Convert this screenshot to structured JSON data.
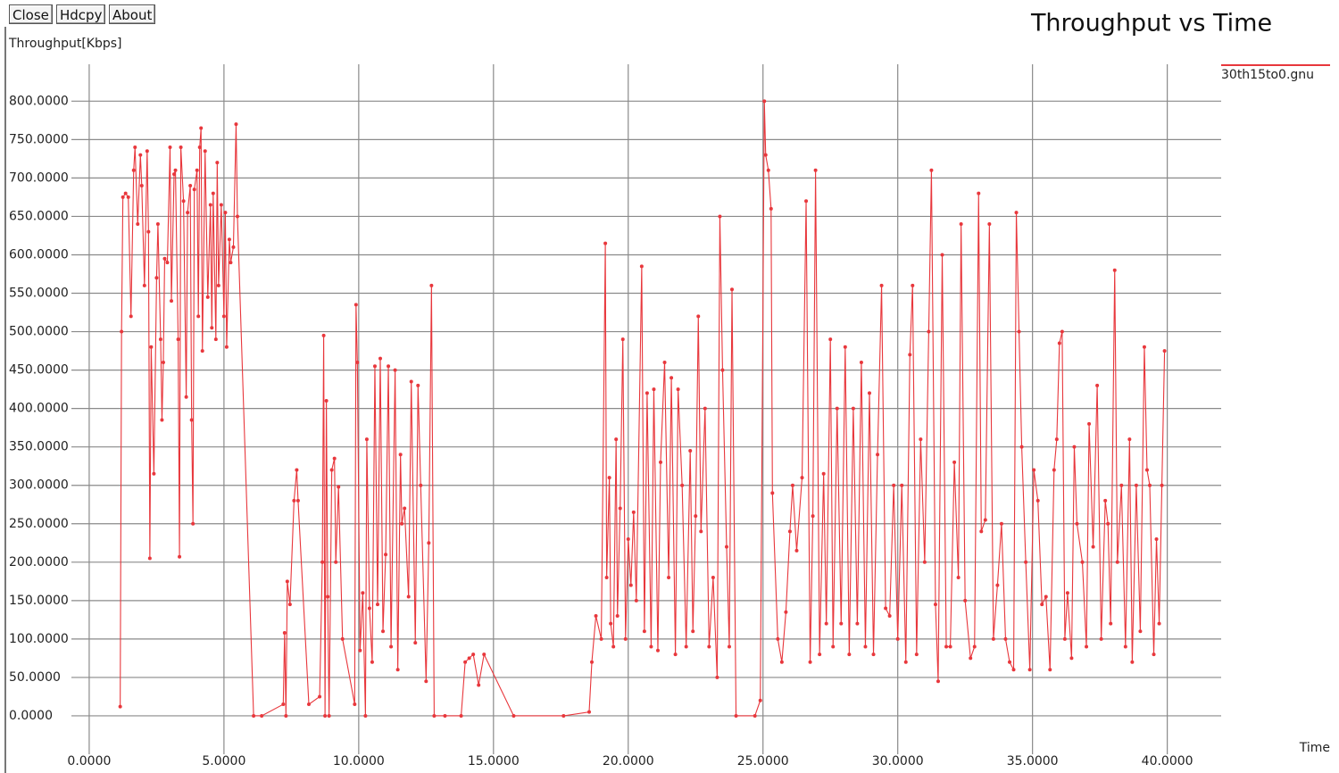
{
  "buttons": [
    "Close",
    "Hdcpy",
    "About"
  ],
  "chart_data": {
    "type": "line",
    "title": "Throughput vs Time",
    "y_label": "Throughput[Kbps]",
    "x_label": "Time",
    "grid": true,
    "legend": "top-right",
    "xlim": [
      -0.66,
      42
    ],
    "ylim": [
      -50,
      848
    ],
    "xticks": [
      {
        "value": 0,
        "label": "0.0000"
      },
      {
        "value": 5,
        "label": "5.0000"
      },
      {
        "value": 10,
        "label": "10.0000"
      },
      {
        "value": 15,
        "label": "15.0000"
      },
      {
        "value": 20,
        "label": "20.0000"
      },
      {
        "value": 25,
        "label": "25.0000"
      },
      {
        "value": 30,
        "label": "30.0000"
      },
      {
        "value": 35,
        "label": "35.0000"
      },
      {
        "value": 40,
        "label": "40.0000"
      }
    ],
    "yticks": [
      {
        "value": 0,
        "label": "0.0000"
      },
      {
        "value": 50,
        "label": "50.0000"
      },
      {
        "value": 100,
        "label": "100.0000"
      },
      {
        "value": 150,
        "label": "150.0000"
      },
      {
        "value": 200,
        "label": "200.0000"
      },
      {
        "value": 250,
        "label": "250.0000"
      },
      {
        "value": 300,
        "label": "300.0000"
      },
      {
        "value": 350,
        "label": "350.0000"
      },
      {
        "value": 400,
        "label": "400.0000"
      },
      {
        "value": 450,
        "label": "450.0000"
      },
      {
        "value": 500,
        "label": "500.0000"
      },
      {
        "value": 550,
        "label": "550.0000"
      },
      {
        "value": 600,
        "label": "600.0000"
      },
      {
        "value": 650,
        "label": "650.0000"
      },
      {
        "value": 700,
        "label": "700.0000"
      },
      {
        "value": 750,
        "label": "750.0000"
      },
      {
        "value": 800,
        "label": "800.0000"
      }
    ],
    "x": [
      1.15,
      1.2,
      1.25,
      1.35,
      1.45,
      1.55,
      1.65,
      1.7,
      1.8,
      1.9,
      1.95,
      2.05,
      2.15,
      2.2,
      2.25,
      2.3,
      2.4,
      2.5,
      2.55,
      2.65,
      2.7,
      2.75,
      2.8,
      2.9,
      3.0,
      3.05,
      3.15,
      3.2,
      3.3,
      3.35,
      3.4,
      3.5,
      3.6,
      3.65,
      3.75,
      3.8,
      3.85,
      3.9,
      4.0,
      4.05,
      4.1,
      4.15,
      4.2,
      4.3,
      4.4,
      4.5,
      4.55,
      4.6,
      4.7,
      4.75,
      4.8,
      4.9,
      5.0,
      5.05,
      5.1,
      5.2,
      5.25,
      5.35,
      5.45,
      5.5,
      6.1,
      6.4,
      7.2,
      7.25,
      7.3,
      7.35,
      7.45,
      7.6,
      7.7,
      7.75,
      8.15,
      8.55,
      8.65,
      8.7,
      8.75,
      8.8,
      8.85,
      8.9,
      9.0,
      9.1,
      9.15,
      9.25,
      9.4,
      9.85,
      9.9,
      9.95,
      10.05,
      10.15,
      10.25,
      10.3,
      10.4,
      10.5,
      10.6,
      10.7,
      10.8,
      10.9,
      11.0,
      11.1,
      11.2,
      11.35,
      11.45,
      11.55,
      11.6,
      11.7,
      11.85,
      11.95,
      12.1,
      12.2,
      12.3,
      12.5,
      12.6,
      12.7,
      12.8,
      13.2,
      13.8,
      13.95,
      14.1,
      14.25,
      14.45,
      14.65,
      15.75,
      17.6,
      18.55,
      18.65,
      18.8,
      19.0,
      19.15,
      19.2,
      19.3,
      19.35,
      19.45,
      19.55,
      19.6,
      19.7,
      19.8,
      19.9,
      20.0,
      20.1,
      20.2,
      20.3,
      20.5,
      20.6,
      20.7,
      20.85,
      20.95,
      21.1,
      21.2,
      21.35,
      21.5,
      21.6,
      21.75,
      21.85,
      22.0,
      22.15,
      22.3,
      22.4,
      22.5,
      22.6,
      22.7,
      22.85,
      23.0,
      23.15,
      23.3,
      23.4,
      23.5,
      23.65,
      23.75,
      23.85,
      24.0,
      24.7,
      24.9,
      25.05,
      25.1,
      25.2,
      25.3,
      25.35,
      25.55,
      25.7,
      25.85,
      26.0,
      26.1,
      26.25,
      26.45,
      26.6,
      26.75,
      26.85,
      26.95,
      27.1,
      27.25,
      27.35,
      27.5,
      27.6,
      27.75,
      27.9,
      28.05,
      28.2,
      28.35,
      28.5,
      28.65,
      28.8,
      28.95,
      29.1,
      29.25,
      29.4,
      29.55,
      29.7,
      29.85,
      30.0,
      30.15,
      30.3,
      30.45,
      30.55,
      30.7,
      30.85,
      31.0,
      31.15,
      31.25,
      31.4,
      31.5,
      31.65,
      31.8,
      31.95,
      32.1,
      32.25,
      32.35,
      32.5,
      32.7,
      32.85,
      33.0,
      33.1,
      33.25,
      33.4,
      33.55,
      33.7,
      33.85,
      34.0,
      34.15,
      34.3,
      34.4,
      34.5,
      34.6,
      34.75,
      34.9,
      35.05,
      35.2,
      35.35,
      35.5,
      35.65,
      35.8,
      35.9,
      36.0,
      36.1,
      36.2,
      36.3,
      36.45,
      36.55,
      36.65,
      36.85,
      37.0,
      37.1,
      37.25,
      37.4,
      37.55,
      37.7,
      37.8,
      37.9,
      38.05,
      38.15,
      38.3,
      38.45,
      38.6,
      38.7,
      38.85,
      39.0,
      39.15,
      39.25,
      39.35,
      39.5,
      39.6,
      39.7,
      39.8,
      39.9
    ],
    "series": [
      {
        "name": "30th15to0.gnu",
        "color": "#e8373c",
        "values": [
          12,
          500,
          675,
          680,
          675,
          520,
          710,
          740,
          640,
          730,
          690,
          560,
          735,
          630,
          205,
          480,
          315,
          570,
          640,
          490,
          385,
          460,
          595,
          590,
          740,
          540,
          705,
          710,
          490,
          207,
          740,
          670,
          415,
          655,
          690,
          385,
          250,
          685,
          710,
          520,
          740,
          765,
          475,
          735,
          545,
          665,
          505,
          680,
          490,
          720,
          560,
          665,
          520,
          655,
          480,
          620,
          590,
          610,
          770,
          650,
          0,
          0,
          15,
          108,
          0,
          175,
          145,
          280,
          320,
          280,
          15,
          25,
          200,
          495,
          0,
          410,
          155,
          0,
          320,
          335,
          200,
          298,
          100,
          15,
          535,
          460,
          85,
          160,
          0,
          360,
          140,
          70,
          455,
          145,
          465,
          110,
          210,
          455,
          90,
          450,
          60,
          340,
          250,
          270,
          155,
          435,
          95,
          430,
          300,
          45,
          225,
          560,
          0,
          0,
          0,
          70,
          75,
          80,
          40,
          80,
          0,
          0,
          5,
          70,
          130,
          100,
          615,
          180,
          310,
          120,
          90,
          360,
          130,
          270,
          490,
          100,
          230,
          170,
          265,
          150,
          585,
          110,
          420,
          90,
          425,
          85,
          330,
          460,
          180,
          440,
          80,
          425,
          300,
          90,
          345,
          110,
          260,
          520,
          240,
          400,
          90,
          180,
          50,
          650,
          450,
          220,
          90,
          555,
          0,
          0,
          20,
          800,
          730,
          710,
          660,
          290,
          100,
          70,
          135,
          240,
          300,
          215,
          310,
          670,
          70,
          260,
          710,
          80,
          315,
          120,
          490,
          90,
          400,
          120,
          480,
          80,
          400,
          120,
          460,
          90,
          420,
          80,
          340,
          560,
          140,
          130,
          300,
          100,
          300,
          70,
          470,
          560,
          80,
          360,
          200,
          500,
          710,
          145,
          45,
          600,
          90,
          90,
          330,
          180,
          640,
          150,
          75,
          90,
          680,
          240,
          255,
          640,
          100,
          170,
          250,
          100,
          70,
          60,
          655,
          500,
          350,
          200,
          60,
          320,
          280,
          145,
          155,
          60,
          320,
          360,
          485,
          500,
          100,
          160,
          75,
          350,
          250,
          200,
          90,
          380,
          220,
          430,
          100,
          280,
          250,
          120,
          580,
          200,
          300,
          90,
          360,
          70,
          300,
          110,
          480,
          320,
          300,
          80,
          230,
          120,
          300,
          475
        ]
      }
    ]
  }
}
